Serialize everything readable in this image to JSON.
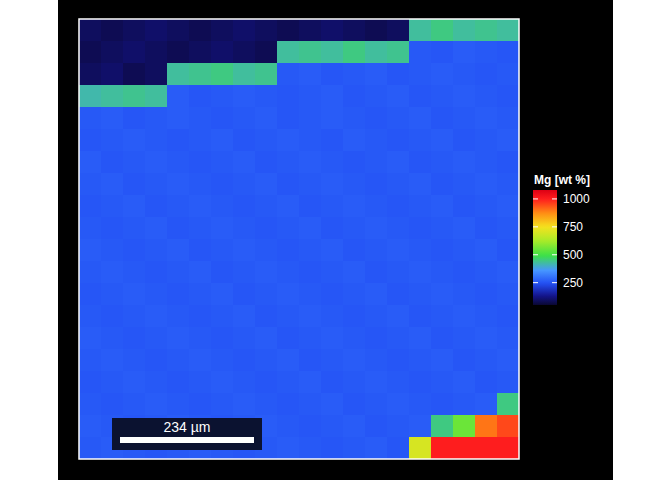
{
  "chart_data": {
    "type": "heatmap",
    "colorbar_title": "Mg [wt %]",
    "zlim": [
      50,
      1080
    ],
    "zticks": [
      250,
      500,
      750,
      1000
    ],
    "scale_bar": "234 µm",
    "tick_labels": false,
    "z": [
      [
        90,
        80,
        90,
        100,
        90,
        80,
        90,
        100,
        90,
        80,
        90,
        100,
        90,
        80,
        90,
        430,
        450,
        430,
        440,
        430
      ],
      [
        80,
        90,
        100,
        90,
        80,
        90,
        100,
        90,
        80,
        430,
        440,
        430,
        450,
        430,
        440,
        260,
        255,
        265,
        260,
        255
      ],
      [
        90,
        100,
        80,
        90,
        430,
        440,
        450,
        430,
        440,
        260,
        265,
        255,
        260,
        265,
        255,
        260,
        265,
        260,
        255,
        260
      ],
      [
        420,
        430,
        440,
        430,
        265,
        255,
        260,
        265,
        260,
        255,
        260,
        265,
        255,
        260,
        265,
        255,
        260,
        265,
        260,
        255
      ],
      [
        260,
        265,
        255,
        260,
        265,
        260,
        255,
        260,
        265,
        255,
        260,
        265,
        260,
        255,
        260,
        265,
        255,
        260,
        265,
        260
      ],
      [
        255,
        260,
        265,
        260,
        255,
        260,
        265,
        255,
        260,
        265,
        260,
        255,
        265,
        260,
        255,
        260,
        265,
        255,
        260,
        265
      ],
      [
        265,
        255,
        260,
        265,
        260,
        255,
        260,
        265,
        255,
        260,
        265,
        260,
        255,
        260,
        265,
        255,
        260,
        265,
        260,
        255
      ],
      [
        260,
        265,
        255,
        260,
        265,
        260,
        255,
        260,
        265,
        255,
        260,
        265,
        260,
        255,
        260,
        265,
        255,
        260,
        265,
        260
      ],
      [
        255,
        260,
        265,
        255,
        260,
        265,
        260,
        255,
        260,
        265,
        255,
        260,
        265,
        260,
        255,
        260,
        265,
        255,
        260,
        265
      ],
      [
        260,
        255,
        260,
        265,
        255,
        260,
        265,
        260,
        255,
        260,
        265,
        255,
        260,
        265,
        260,
        255,
        260,
        265,
        255,
        260
      ],
      [
        265,
        260,
        255,
        260,
        265,
        255,
        260,
        265,
        260,
        255,
        260,
        265,
        255,
        260,
        265,
        260,
        255,
        260,
        265,
        255
      ],
      [
        260,
        265,
        260,
        255,
        260,
        265,
        255,
        260,
        265,
        260,
        255,
        260,
        265,
        255,
        260,
        265,
        260,
        255,
        260,
        265
      ],
      [
        255,
        260,
        265,
        260,
        255,
        260,
        265,
        255,
        260,
        265,
        260,
        255,
        260,
        265,
        255,
        260,
        265,
        260,
        255,
        260
      ],
      [
        260,
        255,
        260,
        265,
        260,
        255,
        260,
        265,
        255,
        260,
        265,
        260,
        255,
        260,
        265,
        255,
        260,
        265,
        260,
        255
      ],
      [
        265,
        260,
        255,
        260,
        265,
        260,
        255,
        260,
        265,
        255,
        260,
        265,
        260,
        255,
        260,
        265,
        255,
        260,
        265,
        260
      ],
      [
        260,
        265,
        260,
        255,
        260,
        265,
        260,
        255,
        260,
        265,
        255,
        260,
        265,
        260,
        255,
        260,
        265,
        255,
        260,
        265
      ],
      [
        255,
        260,
        265,
        260,
        255,
        260,
        265,
        260,
        255,
        260,
        265,
        255,
        260,
        265,
        260,
        255,
        260,
        265,
        255,
        260
      ],
      [
        260,
        255,
        260,
        265,
        260,
        255,
        260,
        265,
        260,
        255,
        260,
        265,
        255,
        260,
        265,
        260,
        255,
        260,
        265,
        450
      ],
      [
        265,
        260,
        255,
        260,
        265,
        260,
        255,
        260,
        265,
        260,
        255,
        260,
        265,
        255,
        260,
        265,
        450,
        550,
        900,
        950
      ],
      [
        260,
        265,
        260,
        255,
        260,
        265,
        260,
        255,
        260,
        265,
        260,
        255,
        260,
        265,
        255,
        700,
        1000,
        1000,
        1000,
        1000
      ]
    ]
  }
}
